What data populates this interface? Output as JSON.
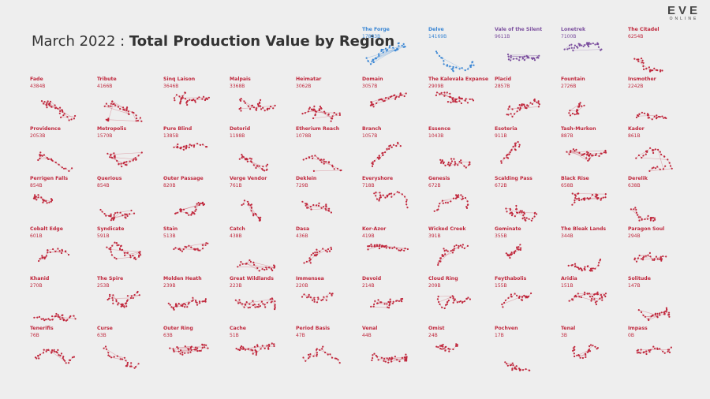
{
  "logo": {
    "main": "EVE",
    "sub": "ONLINE"
  },
  "title": {
    "prefix": "March 2022 : ",
    "main": "Total Production Value by Region"
  },
  "colors": {
    "blue": "#3a86d4",
    "purple": "#7b4f9e",
    "red": "#c0283d"
  },
  "chart_data": {
    "type": "small-multiples",
    "unit": "B",
    "regions": [
      {
        "name": "The Forge",
        "value": "17883B",
        "tier": "blue"
      },
      {
        "name": "Delve",
        "value": "14169B",
        "tier": "blue"
      },
      {
        "name": "Vale of the Silent",
        "value": "9611B",
        "tier": "purple"
      },
      {
        "name": "Lonetrek",
        "value": "7100B",
        "tier": "purple"
      },
      {
        "name": "The Citadel",
        "value": "6254B",
        "tier": "red"
      },
      {
        "name": "Fade",
        "value": "4384B",
        "tier": "red"
      },
      {
        "name": "Tribute",
        "value": "4166B",
        "tier": "red"
      },
      {
        "name": "Sinq Laison",
        "value": "3646B",
        "tier": "red"
      },
      {
        "name": "Malpais",
        "value": "3368B",
        "tier": "red"
      },
      {
        "name": "Heimatar",
        "value": "3062B",
        "tier": "red"
      },
      {
        "name": "Domain",
        "value": "3057B",
        "tier": "red"
      },
      {
        "name": "The Kalevala Expanse",
        "value": "2909B",
        "tier": "red"
      },
      {
        "name": "Placid",
        "value": "2857B",
        "tier": "red"
      },
      {
        "name": "Fountain",
        "value": "2726B",
        "tier": "red"
      },
      {
        "name": "Insmother",
        "value": "2242B",
        "tier": "red"
      },
      {
        "name": "Providence",
        "value": "2053B",
        "tier": "red"
      },
      {
        "name": "Metropolis",
        "value": "1570B",
        "tier": "red"
      },
      {
        "name": "Pure Blind",
        "value": "1385B",
        "tier": "red"
      },
      {
        "name": "Detorid",
        "value": "1198B",
        "tier": "red"
      },
      {
        "name": "Etherium Reach",
        "value": "1078B",
        "tier": "red"
      },
      {
        "name": "Branch",
        "value": "1057B",
        "tier": "red"
      },
      {
        "name": "Essence",
        "value": "1043B",
        "tier": "red"
      },
      {
        "name": "Esoteria",
        "value": "911B",
        "tier": "red"
      },
      {
        "name": "Tash-Murkon",
        "value": "887B",
        "tier": "red"
      },
      {
        "name": "Kador",
        "value": "861B",
        "tier": "red"
      },
      {
        "name": "Perrigen Falls",
        "value": "854B",
        "tier": "red"
      },
      {
        "name": "Querious",
        "value": "854B",
        "tier": "red"
      },
      {
        "name": "Outer Passage",
        "value": "820B",
        "tier": "red"
      },
      {
        "name": "Verge Vendor",
        "value": "761B",
        "tier": "red"
      },
      {
        "name": "Deklein",
        "value": "729B",
        "tier": "red"
      },
      {
        "name": "Everyshore",
        "value": "718B",
        "tier": "red"
      },
      {
        "name": "Genesis",
        "value": "672B",
        "tier": "red"
      },
      {
        "name": "Scalding Pass",
        "value": "672B",
        "tier": "red"
      },
      {
        "name": "Black Rise",
        "value": "658B",
        "tier": "red"
      },
      {
        "name": "Derelik",
        "value": "638B",
        "tier": "red"
      },
      {
        "name": "Cobalt Edge",
        "value": "601B",
        "tier": "red"
      },
      {
        "name": "Syndicate",
        "value": "591B",
        "tier": "red"
      },
      {
        "name": "Stain",
        "value": "513B",
        "tier": "red"
      },
      {
        "name": "Catch",
        "value": "438B",
        "tier": "red"
      },
      {
        "name": "Dasa",
        "value": "436B",
        "tier": "red"
      },
      {
        "name": "Kor-Azor",
        "value": "419B",
        "tier": "red"
      },
      {
        "name": "Wicked Creek",
        "value": "391B",
        "tier": "red"
      },
      {
        "name": "Geminate",
        "value": "355B",
        "tier": "red"
      },
      {
        "name": "The Bleak Lands",
        "value": "344B",
        "tier": "red"
      },
      {
        "name": "Paragon Soul",
        "value": "294B",
        "tier": "red"
      },
      {
        "name": "Khanid",
        "value": "270B",
        "tier": "red"
      },
      {
        "name": "The Spire",
        "value": "253B",
        "tier": "red"
      },
      {
        "name": "Molden Heath",
        "value": "239B",
        "tier": "red"
      },
      {
        "name": "Great Wildlands",
        "value": "223B",
        "tier": "red"
      },
      {
        "name": "Immensea",
        "value": "220B",
        "tier": "red"
      },
      {
        "name": "Devoid",
        "value": "214B",
        "tier": "red"
      },
      {
        "name": "Cloud Ring",
        "value": "209B",
        "tier": "red"
      },
      {
        "name": "Feythabolis",
        "value": "155B",
        "tier": "red"
      },
      {
        "name": "Aridia",
        "value": "151B",
        "tier": "red"
      },
      {
        "name": "Solitude",
        "value": "147B",
        "tier": "red"
      },
      {
        "name": "Tenerifis",
        "value": "76B",
        "tier": "red"
      },
      {
        "name": "Curse",
        "value": "63B",
        "tier": "red"
      },
      {
        "name": "Outer Ring",
        "value": "63B",
        "tier": "red"
      },
      {
        "name": "Cache",
        "value": "51B",
        "tier": "red"
      },
      {
        "name": "Period Basis",
        "value": "47B",
        "tier": "red"
      },
      {
        "name": "Venal",
        "value": "44B",
        "tier": "red"
      },
      {
        "name": "Omist",
        "value": "24B",
        "tier": "red"
      },
      {
        "name": "Pochven",
        "value": "17B",
        "tier": "red"
      },
      {
        "name": "Tenal",
        "value": "3B",
        "tier": "red"
      },
      {
        "name": "Impass",
        "value": "0B",
        "tier": "red"
      }
    ]
  }
}
